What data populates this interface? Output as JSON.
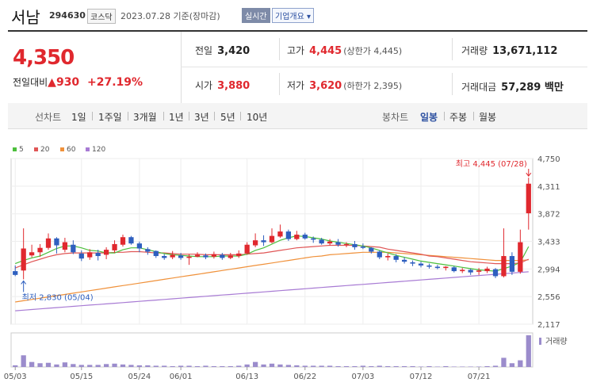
{
  "header": {
    "name": "서남",
    "code": "294630",
    "market": "코스닥",
    "date": "2023.07.28 기준(장마감)",
    "realtime": "실시간",
    "company_info": "기업개요 ▾"
  },
  "summary": {
    "price": "4,350",
    "change_label": "전일대비",
    "change_arrow": "▲",
    "change": "930",
    "change_pct": "+27.19%",
    "prev_label": "전일",
    "prev": "3,420",
    "high_label": "고가",
    "high": "4,445",
    "high_sub": "(상한가 4,445)",
    "volume_label": "거래량",
    "volume": "13,671,112",
    "open_label": "시가",
    "open": "3,880",
    "low_label": "저가",
    "low": "3,620",
    "low_sub": "(하한가 2,395)",
    "amount_label": "거래대금",
    "amount": "57,289 백만"
  },
  "periods": {
    "label": "선차트",
    "items": [
      "1일",
      "1주일",
      "3개월",
      "1년",
      "3년",
      "5년",
      "10년"
    ],
    "candle_label": "봉차트",
    "candle_items": [
      "일봉",
      "주봉",
      "월봉"
    ],
    "active_candle": "일봉"
  },
  "colors": {
    "up": "#e0282e",
    "down": "#2e5fbf",
    "ma5": "#4cbf3c",
    "ma20": "#e05656",
    "ma60": "#f0913a",
    "ma120": "#a87bd4",
    "volume": "#9b8ccc"
  },
  "chart_data": {
    "type": "candlestick",
    "legend": [
      "5",
      "20",
      "60",
      "120"
    ],
    "x_labels": [
      "05/03",
      "05/15",
      "05/24",
      "06/01",
      "06/13",
      "06/22",
      "07/03",
      "07/12",
      "07/21"
    ],
    "x_label_index": [
      0,
      8,
      15,
      20,
      28,
      35,
      42,
      49,
      56
    ],
    "y_ticks": [
      2117,
      2556,
      2994,
      3433,
      3872,
      4311,
      4750
    ],
    "y_tick_labels": [
      "2,117",
      "2,556",
      "2,994",
      "3,433",
      "3,872",
      "4,311",
      "4,750"
    ],
    "ylim": [
      2117,
      4750
    ],
    "high_annotation": "최고 4,445 (07/28)",
    "low_annotation": "최저 2,830 (05/04)",
    "volume_label": "거래량",
    "candles": [
      [
        2960,
        2900,
        3050,
        2880
      ],
      [
        2970,
        3320,
        3640,
        2830
      ],
      [
        3210,
        3260,
        3380,
        3180
      ],
      [
        3260,
        3330,
        3390,
        3190
      ],
      [
        3330,
        3480,
        3560,
        3300
      ],
      [
        3480,
        3370,
        3500,
        3240
      ],
      [
        3300,
        3420,
        3490,
        3260
      ],
      [
        3380,
        3260,
        3450,
        3230
      ],
      [
        3240,
        3160,
        3290,
        3120
      ],
      [
        3180,
        3260,
        3310,
        3140
      ],
      [
        3250,
        3200,
        3300,
        3130
      ],
      [
        3220,
        3300,
        3340,
        3150
      ],
      [
        3290,
        3390,
        3450,
        3250
      ],
      [
        3380,
        3500,
        3540,
        3350
      ],
      [
        3500,
        3400,
        3520,
        3380
      ],
      [
        3400,
        3320,
        3430,
        3260
      ],
      [
        3310,
        3270,
        3340,
        3220
      ],
      [
        3280,
        3200,
        3290,
        3170
      ],
      [
        3200,
        3170,
        3230,
        3140
      ],
      [
        3180,
        3220,
        3280,
        3150
      ],
      [
        3210,
        3170,
        3250,
        3140
      ],
      [
        3170,
        3190,
        3230,
        3060
      ],
      [
        3190,
        3220,
        3260,
        3180
      ],
      [
        3210,
        3180,
        3240,
        3150
      ],
      [
        3190,
        3230,
        3270,
        3160
      ],
      [
        3220,
        3170,
        3250,
        3140
      ],
      [
        3170,
        3210,
        3250,
        3150
      ],
      [
        3200,
        3240,
        3290,
        3170
      ],
      [
        3240,
        3380,
        3420,
        3220
      ],
      [
        3370,
        3450,
        3560,
        3340
      ],
      [
        3450,
        3420,
        3530,
        3360
      ],
      [
        3420,
        3520,
        3640,
        3400
      ],
      [
        3510,
        3590,
        3700,
        3490
      ],
      [
        3590,
        3470,
        3620,
        3440
      ],
      [
        3470,
        3540,
        3600,
        3450
      ],
      [
        3540,
        3480,
        3570,
        3460
      ],
      [
        3480,
        3460,
        3510,
        3410
      ],
      [
        3460,
        3400,
        3490,
        3380
      ],
      [
        3400,
        3430,
        3470,
        3370
      ],
      [
        3420,
        3380,
        3470,
        3350
      ],
      [
        3380,
        3390,
        3420,
        3340
      ],
      [
        3390,
        3340,
        3440,
        3300
      ],
      [
        3350,
        3330,
        3400,
        3310
      ],
      [
        3330,
        3270,
        3340,
        3240
      ],
      [
        3270,
        3180,
        3290,
        3150
      ],
      [
        3180,
        3200,
        3240,
        3130
      ],
      [
        3200,
        3140,
        3230,
        3100
      ],
      [
        3140,
        3110,
        3180,
        3080
      ],
      [
        3100,
        3080,
        3130,
        3040
      ],
      [
        3080,
        3050,
        3110,
        3020
      ],
      [
        3050,
        3030,
        3080,
        3000
      ],
      [
        3030,
        3010,
        3060,
        2990
      ],
      [
        3010,
        3030,
        3040,
        2970
      ],
      [
        3020,
        2960,
        3040,
        2940
      ],
      [
        2960,
        2980,
        3010,
        2930
      ],
      [
        2980,
        2940,
        3000,
        2900
      ],
      [
        2950,
        2970,
        3010,
        2900
      ],
      [
        2960,
        3000,
        3030,
        2930
      ],
      [
        2990,
        2880,
        3010,
        2850
      ],
      [
        2880,
        3200,
        3640,
        2860
      ],
      [
        3200,
        2950,
        3260,
        2900
      ],
      [
        2950,
        3420,
        3620,
        2920
      ],
      [
        3880,
        4350,
        4445,
        3620
      ]
    ],
    "volumes": [
      0.4,
      2.8,
      1.2,
      0.9,
      1.0,
      0.6,
      1.1,
      0.7,
      0.5,
      0.5,
      0.5,
      0.7,
      0.8,
      0.6,
      0.5,
      0.4,
      0.4,
      0.3,
      0.3,
      0.2,
      0.3,
      0.3,
      0.2,
      0.3,
      0.2,
      0.2,
      0.2,
      0.3,
      0.6,
      1.2,
      0.6,
      0.8,
      0.6,
      0.5,
      0.4,
      0.3,
      0.3,
      0.3,
      0.3,
      0.2,
      0.2,
      0.2,
      0.3,
      0.2,
      0.3,
      0.2,
      0.2,
      0.2,
      0.2,
      0.1,
      0.2,
      0.1,
      0.2,
      0.1,
      0.1,
      0.1,
      0.1,
      0.2,
      0.3,
      2.2,
      0.9,
      1.6,
      7.6
    ],
    "ma5": [
      3080,
      3130,
      3170,
      3200,
      3260,
      3320,
      3360,
      3360,
      3330,
      3290,
      3280,
      3250,
      3250,
      3300,
      3330,
      3330,
      3300,
      3270,
      3240,
      3220,
      3210,
      3200,
      3190,
      3190,
      3190,
      3200,
      3200,
      3200,
      3230,
      3290,
      3330,
      3390,
      3450,
      3490,
      3520,
      3510,
      3490,
      3470,
      3440,
      3420,
      3400,
      3380,
      3360,
      3330,
      3290,
      3250,
      3210,
      3180,
      3150,
      3120,
      3100,
      3080,
      3060,
      3040,
      3020,
      3000,
      2980,
      2970,
      2960,
      3000,
      3040,
      3100,
      3350
    ],
    "ma20": [
      3010,
      3060,
      3110,
      3150,
      3190,
      3220,
      3240,
      3250,
      3250,
      3250,
      3250,
      3250,
      3260,
      3260,
      3270,
      3270,
      3260,
      3250,
      3250,
      3240,
      3230,
      3230,
      3230,
      3220,
      3220,
      3220,
      3220,
      3220,
      3230,
      3240,
      3250,
      3270,
      3290,
      3310,
      3330,
      3340,
      3350,
      3360,
      3370,
      3370,
      3370,
      3370,
      3360,
      3350,
      3340,
      3310,
      3290,
      3270,
      3250,
      3230,
      3200,
      3190,
      3170,
      3150,
      3130,
      3110,
      3100,
      3090,
      3080,
      3080,
      3080,
      3090,
      3150
    ],
    "ma60": [
      2470,
      2490,
      2510,
      2530,
      2550,
      2570,
      2590,
      2610,
      2630,
      2650,
      2670,
      2690,
      2710,
      2730,
      2750,
      2770,
      2790,
      2810,
      2830,
      2850,
      2870,
      2890,
      2910,
      2930,
      2950,
      2970,
      2990,
      3010,
      3030,
      3050,
      3070,
      3090,
      3110,
      3130,
      3150,
      3170,
      3190,
      3200,
      3220,
      3230,
      3240,
      3250,
      3260,
      3260,
      3260,
      3260,
      3250,
      3240,
      3230,
      3220,
      3210,
      3200,
      3190,
      3180,
      3170,
      3160,
      3150,
      3140,
      3130,
      3130,
      3130,
      3130,
      3140
    ],
    "ma120": [
      2330,
      2340,
      2350,
      2360,
      2370,
      2380,
      2390,
      2400,
      2410,
      2420,
      2430,
      2440,
      2450,
      2460,
      2470,
      2480,
      2490,
      2500,
      2510,
      2520,
      2530,
      2540,
      2550,
      2560,
      2570,
      2580,
      2590,
      2600,
      2610,
      2620,
      2630,
      2640,
      2650,
      2660,
      2670,
      2680,
      2690,
      2700,
      2710,
      2720,
      2730,
      2740,
      2750,
      2760,
      2770,
      2780,
      2790,
      2800,
      2810,
      2820,
      2830,
      2840,
      2850,
      2860,
      2870,
      2880,
      2890,
      2900,
      2910,
      2920,
      2930,
      2940,
      2950
    ]
  }
}
